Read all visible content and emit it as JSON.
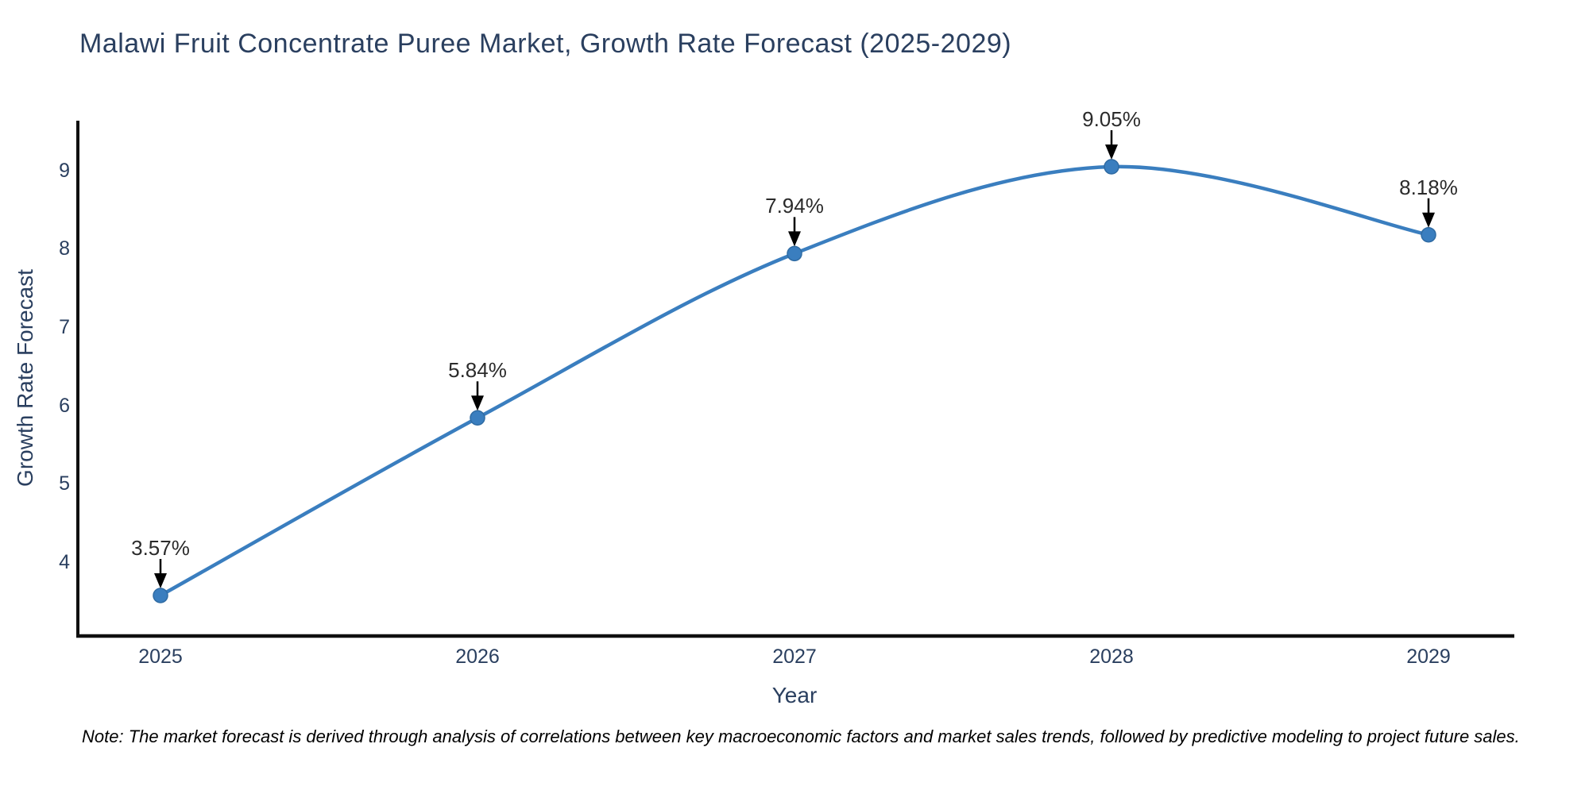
{
  "title": "Malawi Fruit Concentrate Puree Market, Growth Rate Forecast (2025-2029)",
  "note": "Note: The market forecast is derived through analysis of correlations between key macroeconomic factors and market sales trends, followed by predictive modeling to project future sales.",
  "chart_data": {
    "type": "line",
    "title": "Malawi Fruit Concentrate Puree Market, Growth Rate Forecast (2025-2029)",
    "xlabel": "Year",
    "ylabel": "Growth Rate Forecast",
    "categories": [
      "2025",
      "2026",
      "2027",
      "2028",
      "2029"
    ],
    "values": [
      3.57,
      5.84,
      7.94,
      9.05,
      8.18
    ],
    "point_labels": [
      "3.57%",
      "5.84%",
      "7.94%",
      "9.05%",
      "8.18%"
    ],
    "y_ticks": [
      4,
      5,
      6,
      7,
      8,
      9
    ],
    "ylim": [
      3.03,
      9.61
    ],
    "grid": false,
    "legend": "none",
    "line_shape": "spline",
    "marker": "circle",
    "annotation_style": "value label with down arrow to point",
    "colors": {
      "line": "#3a7ebf",
      "marker_fill": "#3a7ebf",
      "marker_edge": "#2f6ba3",
      "axis_line": "#0f0f0f",
      "axis_text": "#2a3f5f",
      "annotation_text": "#2b2b2b",
      "note_text": "#000000",
      "background": "#ffffff"
    }
  }
}
